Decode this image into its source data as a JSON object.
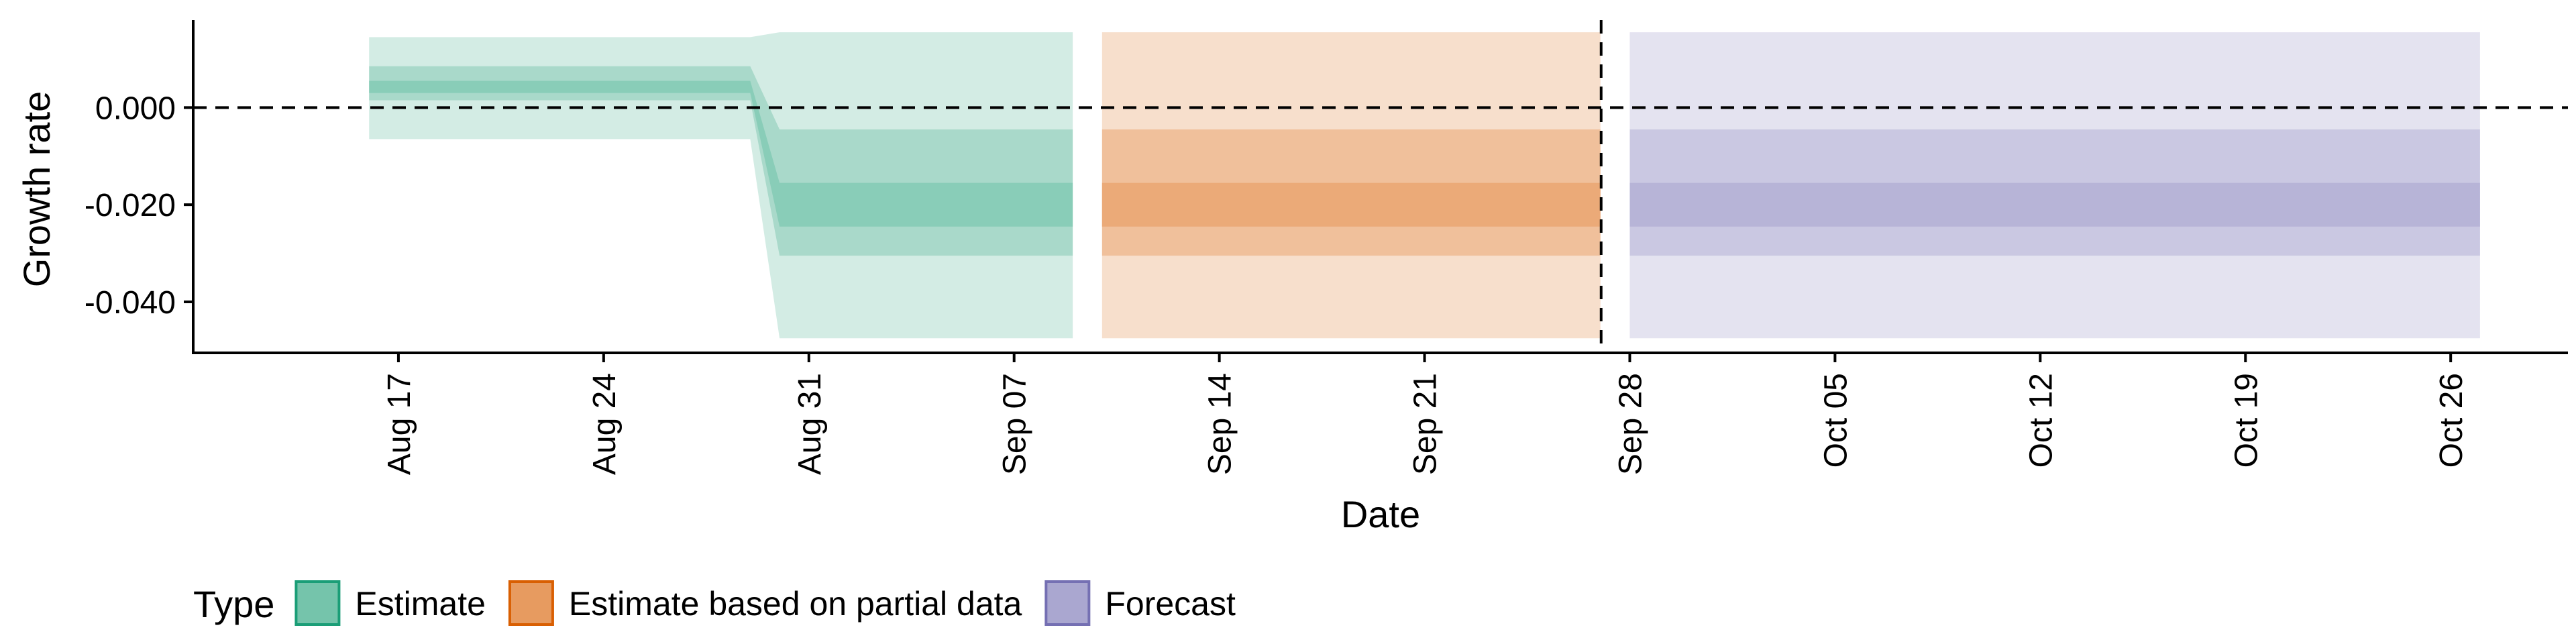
{
  "chart_data": {
    "type": "area",
    "title": "",
    "xlabel": "Date",
    "ylabel": "Growth rate",
    "ylim": [
      -0.0505,
      0.018
    ],
    "xlim": [
      "2020-08-10",
      "2020-10-30"
    ],
    "y_ticks": [
      {
        "value": 0.0,
        "label": "0.000"
      },
      {
        "value": -0.02,
        "label": "-0.020"
      },
      {
        "value": -0.04,
        "label": "-0.040"
      }
    ],
    "x_ticks": [
      {
        "date": "2020-08-17",
        "label": "Aug 17"
      },
      {
        "date": "2020-08-24",
        "label": "Aug 24"
      },
      {
        "date": "2020-08-31",
        "label": "Aug 31"
      },
      {
        "date": "2020-09-07",
        "label": "Sep 07"
      },
      {
        "date": "2020-09-14",
        "label": "Sep 14"
      },
      {
        "date": "2020-09-21",
        "label": "Sep 21"
      },
      {
        "date": "2020-09-28",
        "label": "Sep 28"
      },
      {
        "date": "2020-10-05",
        "label": "Oct 05"
      },
      {
        "date": "2020-10-12",
        "label": "Oct 12"
      },
      {
        "date": "2020-10-19",
        "label": "Oct 19"
      },
      {
        "date": "2020-10-26",
        "label": "Oct 26"
      }
    ],
    "reference_lines": {
      "horizontal_y": 0.0,
      "vertical_date": "2020-09-27"
    },
    "series": [
      {
        "name": "Estimate",
        "color": "#1b9e77",
        "fill": "#75c4ab",
        "points": [
          {
            "date": "2020-08-16",
            "outer": [
              -0.0065,
              0.0145
            ],
            "mid": [
              0.0015,
              0.0085
            ],
            "inner": [
              0.003,
              0.0055
            ]
          },
          {
            "date": "2020-08-29",
            "outer": [
              -0.0065,
              0.0145
            ],
            "mid": [
              0.0015,
              0.0085
            ],
            "inner": [
              0.003,
              0.0055
            ]
          },
          {
            "date": "2020-08-30",
            "outer": [
              -0.0475,
              0.0155
            ],
            "mid": [
              -0.0305,
              -0.0045
            ],
            "inner": [
              -0.0245,
              -0.0155
            ]
          },
          {
            "date": "2020-09-09",
            "outer": [
              -0.0475,
              0.0155
            ],
            "mid": [
              -0.0305,
              -0.0045
            ],
            "inner": [
              -0.0245,
              -0.0155
            ]
          }
        ]
      },
      {
        "name": "Estimate based on partial data",
        "color": "#d95f02",
        "fill": "#e79b60",
        "points": [
          {
            "date": "2020-09-10",
            "outer": [
              -0.0475,
              0.0155
            ],
            "mid": [
              -0.0305,
              -0.0045
            ],
            "inner": [
              -0.0245,
              -0.0155
            ]
          },
          {
            "date": "2020-09-27",
            "outer": [
              -0.0475,
              0.0155
            ],
            "mid": [
              -0.0305,
              -0.0045
            ],
            "inner": [
              -0.0245,
              -0.0155
            ]
          }
        ]
      },
      {
        "name": "Forecast",
        "color": "#7570b3",
        "fill": "#aaa7d0",
        "points": [
          {
            "date": "2020-09-28",
            "outer": [
              -0.0475,
              0.0155
            ],
            "mid": [
              -0.0305,
              -0.0045
            ],
            "inner": [
              -0.0245,
              -0.0155
            ]
          },
          {
            "date": "2020-10-27",
            "outer": [
              -0.0475,
              0.0155
            ],
            "mid": [
              -0.0305,
              -0.0045
            ],
            "inner": [
              -0.0245,
              -0.0155
            ]
          }
        ]
      }
    ],
    "legend": {
      "position": "bottom-left",
      "title": "Type",
      "items": [
        "Estimate",
        "Estimate based on partial data",
        "Forecast"
      ]
    }
  }
}
